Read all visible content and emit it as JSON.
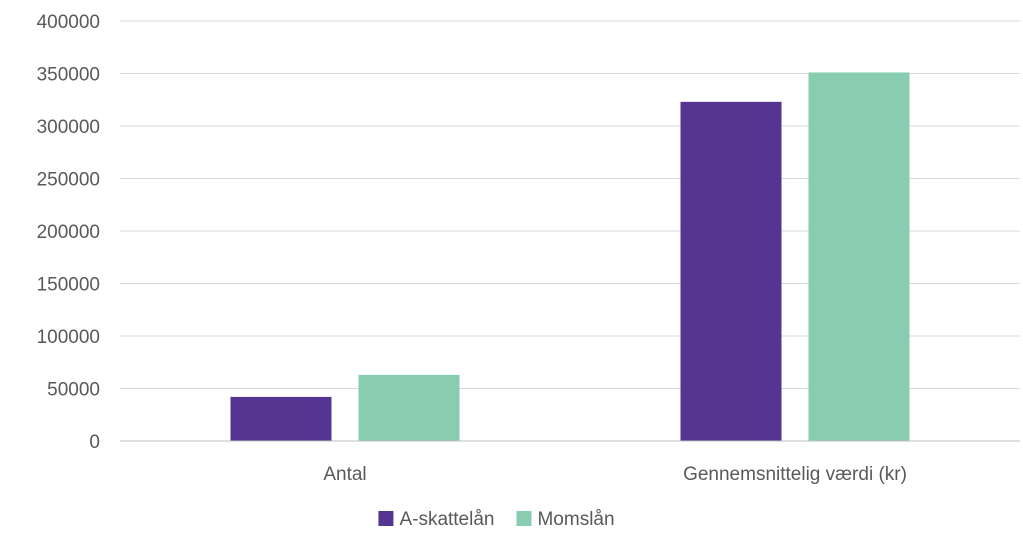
{
  "chart_data": {
    "type": "bar",
    "categories": [
      "Antal",
      "Gennemsnittelig værdi (kr)"
    ],
    "series": [
      {
        "name": "A-skattelån",
        "color": "#553592",
        "values": [
          42000,
          323000
        ]
      },
      {
        "name": "Momslån",
        "color": "#88CDAF",
        "values": [
          63000,
          351000
        ]
      }
    ],
    "ylim": [
      0,
      400000
    ],
    "yticks": [
      "0",
      "50000",
      "100000",
      "150000",
      "200000",
      "250000",
      "300000",
      "350000",
      "400000"
    ],
    "title": "",
    "xlabel": "",
    "ylabel": "",
    "grid": true,
    "legend_position": "bottom-center",
    "colors": {
      "grid": "#D9D9D9",
      "axis": "#BFBFBF",
      "text": "#595959"
    }
  }
}
